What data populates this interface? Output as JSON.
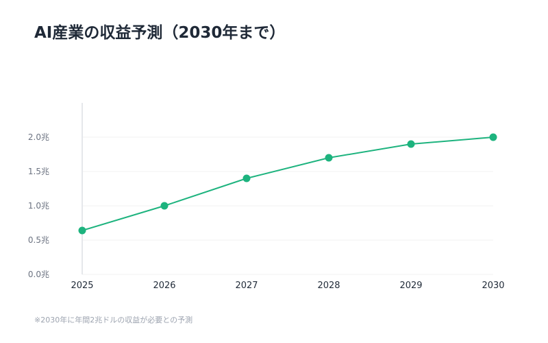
{
  "chart_data": {
    "type": "line",
    "title": "AI産業の収益予測（2030年まで）",
    "categories": [
      "2025",
      "2026",
      "2027",
      "2028",
      "2029",
      "2030"
    ],
    "series": [
      {
        "values": [
          0.64,
          1.0,
          1.4,
          1.7,
          1.9,
          2.0
        ]
      }
    ],
    "yticks": [
      "0.0兆",
      "0.5兆",
      "1.0兆",
      "1.5兆",
      "2.0兆"
    ],
    "ytick_values": [
      0,
      0.5,
      1.0,
      1.5,
      2.0
    ],
    "ylim": [
      0,
      2.5
    ],
    "grid": true,
    "color": "#1db37e",
    "note": "※2030年に年間2兆ドルの収益が必要との予測"
  }
}
